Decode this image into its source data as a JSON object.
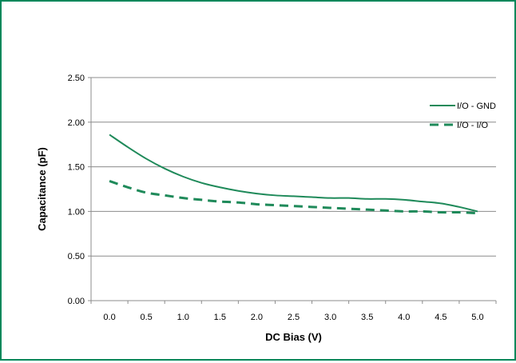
{
  "chart_data": {
    "type": "line",
    "title": "",
    "xlabel": "DC Bias (V)",
    "ylabel": "Capacitance (pF)",
    "xlim": [
      -0.25,
      5.25
    ],
    "ylim": [
      0,
      2.5
    ],
    "x_ticks": [
      "0.0",
      "0.5",
      "1.0",
      "1.5",
      "2.0",
      "2.5",
      "3.0",
      "3.5",
      "4.0",
      "4.5",
      "5.0"
    ],
    "y_ticks": [
      "0.00",
      "0.50",
      "1.00",
      "1.50",
      "2.00",
      "2.50"
    ],
    "grid": "horizontal",
    "legend_position": "top-right",
    "series": [
      {
        "name": "I/O - GND",
        "style": "solid",
        "color": "#1f8a5a",
        "x": [
          0.0,
          0.25,
          0.5,
          0.75,
          1.0,
          1.25,
          1.5,
          1.75,
          2.0,
          2.25,
          2.5,
          2.75,
          3.0,
          3.25,
          3.5,
          3.75,
          4.0,
          4.25,
          4.5,
          4.75,
          5.0
        ],
        "values": [
          1.86,
          1.72,
          1.59,
          1.48,
          1.39,
          1.32,
          1.27,
          1.23,
          1.2,
          1.18,
          1.17,
          1.16,
          1.15,
          1.15,
          1.14,
          1.14,
          1.13,
          1.11,
          1.09,
          1.05,
          1.0
        ]
      },
      {
        "name": "I/O - I/O",
        "style": "dashed",
        "color": "#1f8a5a",
        "x": [
          0.0,
          0.25,
          0.5,
          0.75,
          1.0,
          1.25,
          1.5,
          1.75,
          2.0,
          2.25,
          2.5,
          2.75,
          3.0,
          3.25,
          3.5,
          3.75,
          4.0,
          4.25,
          4.5,
          4.75,
          5.0
        ],
        "values": [
          1.34,
          1.27,
          1.21,
          1.18,
          1.15,
          1.13,
          1.11,
          1.1,
          1.08,
          1.07,
          1.06,
          1.05,
          1.04,
          1.03,
          1.02,
          1.01,
          1.0,
          1.0,
          0.99,
          0.99,
          0.98
        ]
      }
    ]
  }
}
